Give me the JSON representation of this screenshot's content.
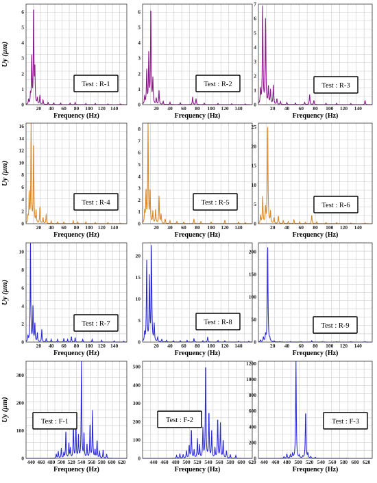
{
  "figure": {
    "ylabel": "Uy (μm)",
    "xlabel": "Frequency (Hz)",
    "colors": {
      "purple": "#8b1a8b",
      "orange": "#d9892b",
      "blue": "#2b2bd9",
      "grid": "#c8c8c8",
      "axis": "#333333"
    }
  },
  "chart_data": [
    {
      "type": "line",
      "id": "R-1",
      "color_key": "purple",
      "legend": "Test : R-1",
      "xlim": [
        0,
        160
      ],
      "ylim": [
        0,
        6.5
      ],
      "xticks": [
        20,
        40,
        60,
        80,
        100,
        120,
        140
      ],
      "yticks": [
        0,
        1,
        2,
        3,
        4,
        5,
        6
      ],
      "peaks": [
        [
          4,
          0.3
        ],
        [
          7,
          0.6
        ],
        [
          9,
          3.0
        ],
        [
          12,
          6.4
        ],
        [
          14,
          2.2
        ],
        [
          18,
          0.4
        ],
        [
          22,
          0.6
        ],
        [
          27,
          0.3
        ],
        [
          35,
          0.15
        ],
        [
          44,
          0.12
        ],
        [
          55,
          0.1
        ],
        [
          70,
          0.1
        ],
        [
          78,
          0.15
        ],
        [
          95,
          0.08
        ],
        [
          110,
          0.08
        ],
        [
          130,
          0.05
        ],
        [
          150,
          0.05
        ]
      ]
    },
    {
      "type": "line",
      "id": "R-2",
      "color_key": "purple",
      "legend": "Test : R-2",
      "xlim": [
        0,
        160
      ],
      "ylim": [
        0,
        6.5
      ],
      "xticks": [
        20,
        40,
        60,
        80,
        100,
        120,
        140
      ],
      "yticks": [
        0,
        1,
        2,
        3,
        4,
        5,
        6
      ],
      "peaks": [
        [
          3,
          0.5
        ],
        [
          6,
          2.2
        ],
        [
          9,
          3.2
        ],
        [
          12,
          6.4
        ],
        [
          15,
          1.6
        ],
        [
          20,
          0.4
        ],
        [
          24,
          0.9
        ],
        [
          30,
          0.2
        ],
        [
          40,
          0.15
        ],
        [
          55,
          0.12
        ],
        [
          73,
          0.5
        ],
        [
          78,
          0.4
        ],
        [
          90,
          0.1
        ],
        [
          110,
          0.08
        ],
        [
          130,
          0.06
        ],
        [
          150,
          0.05
        ]
      ]
    },
    {
      "type": "line",
      "id": "R-3",
      "color_key": "purple",
      "legend": "Test : R-3",
      "xlim": [
        0,
        160
      ],
      "ylim": [
        0,
        7
      ],
      "xticks": [
        20,
        40,
        60,
        80,
        100,
        120,
        140
      ],
      "yticks": [
        0,
        1,
        2,
        3,
        4,
        5,
        6,
        7
      ],
      "peaks": [
        [
          3,
          1.0
        ],
        [
          6,
          6.9
        ],
        [
          10,
          6.0
        ],
        [
          14,
          1.2
        ],
        [
          17,
          1.0
        ],
        [
          21,
          1.4
        ],
        [
          26,
          0.4
        ],
        [
          31,
          0.2
        ],
        [
          40,
          0.15
        ],
        [
          52,
          0.12
        ],
        [
          65,
          0.15
        ],
        [
          72,
          0.7
        ],
        [
          78,
          0.3
        ],
        [
          95,
          0.1
        ],
        [
          110,
          0.1
        ],
        [
          130,
          0.08
        ],
        [
          150,
          0.3
        ]
      ]
    },
    {
      "type": "line",
      "id": "R-4",
      "color_key": "orange",
      "legend": "Test : R-4",
      "xlim": [
        0,
        160
      ],
      "ylim": [
        0,
        16.5
      ],
      "xticks": [
        20,
        40,
        60,
        80,
        100,
        120,
        140
      ],
      "yticks": [
        0,
        2,
        4,
        6,
        8,
        10,
        12,
        14,
        16
      ],
      "peaks": [
        [
          3,
          1.0
        ],
        [
          5,
          5.0
        ],
        [
          8,
          16.5
        ],
        [
          12,
          13.5
        ],
        [
          16,
          2.0
        ],
        [
          22,
          2.8
        ],
        [
          27,
          1.0
        ],
        [
          32,
          1.6
        ],
        [
          40,
          0.4
        ],
        [
          50,
          0.3
        ],
        [
          60,
          0.3
        ],
        [
          75,
          0.5
        ],
        [
          82,
          0.3
        ],
        [
          95,
          0.3
        ],
        [
          110,
          0.2
        ],
        [
          130,
          0.2
        ],
        [
          150,
          0.1
        ]
      ]
    },
    {
      "type": "line",
      "id": "R-5",
      "color_key": "orange",
      "legend": "Test : R-5",
      "xlim": [
        0,
        160
      ],
      "ylim": [
        0,
        8.5
      ],
      "xticks": [
        20,
        40,
        60,
        80,
        100,
        120,
        140
      ],
      "yticks": [
        0,
        1,
        2,
        3,
        4,
        5,
        6,
        7,
        8
      ],
      "peaks": [
        [
          3,
          1.0
        ],
        [
          5,
          2.7
        ],
        [
          8,
          8.5
        ],
        [
          11,
          2.7
        ],
        [
          15,
          1.0
        ],
        [
          19,
          1.2
        ],
        [
          24,
          2.3
        ],
        [
          27,
          0.8
        ],
        [
          33,
          0.4
        ],
        [
          40,
          0.25
        ],
        [
          50,
          0.2
        ],
        [
          60,
          0.15
        ],
        [
          75,
          0.4
        ],
        [
          85,
          0.2
        ],
        [
          100,
          0.15
        ],
        [
          120,
          0.3
        ],
        [
          140,
          0.15
        ],
        [
          150,
          0.1
        ]
      ]
    },
    {
      "type": "line",
      "id": "R-6",
      "color_key": "orange",
      "legend": "Test : R-6",
      "xlim": [
        0,
        160
      ],
      "ylim": [
        0,
        26
      ],
      "xticks": [
        20,
        40,
        60,
        80,
        100,
        120,
        140
      ],
      "yticks": [
        0,
        5,
        10,
        15,
        20,
        25
      ],
      "peaks": [
        [
          3,
          2.0
        ],
        [
          6,
          7.0
        ],
        [
          10,
          4.0
        ],
        [
          13,
          26
        ],
        [
          17,
          3.0
        ],
        [
          22,
          1.5
        ],
        [
          28,
          2.0
        ],
        [
          35,
          0.8
        ],
        [
          42,
          0.6
        ],
        [
          50,
          1.0
        ],
        [
          58,
          0.5
        ],
        [
          66,
          0.4
        ],
        [
          75,
          2.2
        ],
        [
          82,
          0.5
        ],
        [
          95,
          0.3
        ],
        [
          110,
          0.3
        ],
        [
          130,
          0.2
        ],
        [
          150,
          0.2
        ]
      ]
    },
    {
      "type": "line",
      "id": "R-7",
      "color_key": "blue",
      "legend": "Test : R-7",
      "xlim": [
        0,
        160
      ],
      "ylim": [
        0,
        11
      ],
      "xticks": [
        20,
        40,
        60,
        80,
        100,
        120,
        140
      ],
      "yticks": [
        0,
        2,
        4,
        6,
        8,
        10
      ],
      "peaks": [
        [
          3,
          0.6
        ],
        [
          7,
          11
        ],
        [
          11,
          4.0
        ],
        [
          14,
          2.0
        ],
        [
          18,
          1.0
        ],
        [
          25,
          1.4
        ],
        [
          32,
          0.4
        ],
        [
          40,
          0.3
        ],
        [
          50,
          0.3
        ],
        [
          60,
          0.4
        ],
        [
          66,
          0.3
        ],
        [
          72,
          0.6
        ],
        [
          78,
          0.5
        ],
        [
          90,
          0.3
        ],
        [
          105,
          0.3
        ],
        [
          120,
          0.2
        ],
        [
          140,
          0.15
        ],
        [
          155,
          0.1
        ]
      ]
    },
    {
      "type": "line",
      "id": "R-8",
      "color_key": "blue",
      "legend": "Test : R-8",
      "xlim": [
        0,
        160
      ],
      "ylim": [
        0,
        23
      ],
      "xticks": [
        20,
        40,
        60,
        80,
        100,
        120,
        140
      ],
      "yticks": [
        0,
        5,
        10,
        15,
        20
      ],
      "peaks": [
        [
          3,
          2.0
        ],
        [
          6,
          19
        ],
        [
          10,
          15
        ],
        [
          13,
          23
        ],
        [
          17,
          4.0
        ],
        [
          22,
          1.0
        ],
        [
          28,
          0.6
        ],
        [
          35,
          0.4
        ],
        [
          45,
          0.3
        ],
        [
          55,
          0.3
        ],
        [
          65,
          0.4
        ],
        [
          75,
          0.8
        ],
        [
          88,
          0.3
        ],
        [
          95,
          1.2
        ],
        [
          110,
          0.4
        ],
        [
          120,
          0.3
        ],
        [
          140,
          0.2
        ],
        [
          155,
          0.2
        ]
      ]
    },
    {
      "type": "line",
      "id": "R-9",
      "color_key": "blue",
      "legend": "Test : R-9",
      "xlim": [
        0,
        160
      ],
      "ylim": [
        0,
        220
      ],
      "xticks": [
        20,
        40,
        60,
        80,
        100,
        120,
        140
      ],
      "yticks": [
        0,
        50,
        100,
        150,
        200
      ],
      "peaks": [
        [
          3,
          4
        ],
        [
          7,
          10
        ],
        [
          10,
          14
        ],
        [
          13,
          220
        ],
        [
          16,
          6
        ],
        [
          22,
          2
        ],
        [
          30,
          1
        ],
        [
          45,
          1
        ],
        [
          60,
          1
        ],
        [
          75,
          3
        ],
        [
          90,
          1
        ],
        [
          110,
          1
        ],
        [
          130,
          1
        ],
        [
          150,
          1
        ]
      ]
    },
    {
      "type": "line",
      "id": "F-1",
      "color_key": "blue",
      "legend": "Test : F-1",
      "xlim": [
        430,
        630
      ],
      "ylim": [
        0,
        350
      ],
      "xticks": [
        440,
        460,
        480,
        500,
        520,
        540,
        560,
        580,
        600,
        620
      ],
      "yticks": [
        0,
        100,
        200,
        300
      ],
      "peaks": [
        [
          490,
          15
        ],
        [
          494,
          25
        ],
        [
          500,
          35
        ],
        [
          505,
          20
        ],
        [
          509,
          100
        ],
        [
          515,
          55
        ],
        [
          518,
          35
        ],
        [
          524,
          125
        ],
        [
          529,
          130
        ],
        [
          534,
          80
        ],
        [
          540,
          350
        ],
        [
          545,
          90
        ],
        [
          551,
          50
        ],
        [
          557,
          125
        ],
        [
          562,
          170
        ],
        [
          567,
          30
        ],
        [
          571,
          65
        ],
        [
          576,
          25
        ],
        [
          583,
          30
        ],
        [
          590,
          15
        ]
      ]
    },
    {
      "type": "line",
      "id": "F-2",
      "color_key": "blue",
      "legend": "Test : F-2",
      "xlim": [
        420,
        620
      ],
      "ylim": [
        0,
        530
      ],
      "xticks": [
        440,
        460,
        480,
        500,
        520,
        540,
        560,
        580,
        600,
        620
      ],
      "yticks": [
        0,
        100,
        200,
        300,
        400,
        500
      ],
      "peaks": [
        [
          482,
          15
        ],
        [
          488,
          25
        ],
        [
          494,
          20
        ],
        [
          500,
          40
        ],
        [
          505,
          70
        ],
        [
          509,
          160
        ],
        [
          514,
          45
        ],
        [
          520,
          105
        ],
        [
          524,
          70
        ],
        [
          530,
          160
        ],
        [
          535,
          530
        ],
        [
          541,
          255
        ],
        [
          546,
          145
        ],
        [
          552,
          55
        ],
        [
          557,
          220
        ],
        [
          562,
          190
        ],
        [
          567,
          100
        ],
        [
          573,
          40
        ],
        [
          580,
          20
        ],
        [
          590,
          15
        ]
      ]
    },
    {
      "type": "line",
      "id": "F-3",
      "color_key": "blue",
      "legend": "Test : F-3",
      "xlim": [
        430,
        630
      ],
      "ylim": [
        0,
        1230
      ],
      "xticks": [
        440,
        460,
        480,
        500,
        520,
        540,
        560,
        580,
        600,
        620
      ],
      "yticks": [
        0,
        200,
        400,
        600,
        800,
        1000,
        1200
      ],
      "peaks": [
        [
          475,
          20
        ],
        [
          480,
          55
        ],
        [
          486,
          40
        ],
        [
          490,
          60
        ],
        [
          496,
          1230
        ],
        [
          502,
          30
        ],
        [
          508,
          20
        ],
        [
          513,
          610
        ],
        [
          517,
          60
        ],
        [
          522,
          20
        ],
        [
          530,
          12
        ]
      ]
    }
  ]
}
